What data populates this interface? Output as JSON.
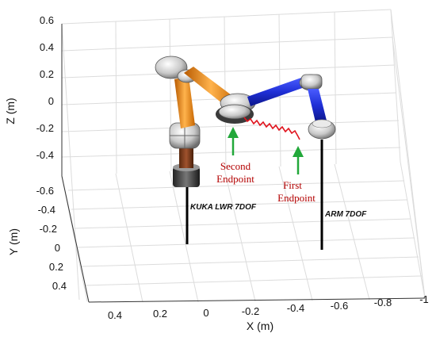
{
  "figure": {
    "z_axis": {
      "label": "Z (m)",
      "ticks": [
        "0.6",
        "0.4",
        "0.2",
        "0",
        "-0.2",
        "-0.4"
      ]
    },
    "y_axis": {
      "label": "Y (m)",
      "ticks": [
        "-0.6",
        "-0.4",
        "-0.2",
        "0",
        "0.2",
        "0.4"
      ]
    },
    "x_axis": {
      "label": "X (m)",
      "ticks": [
        "0.4",
        "0.2",
        "0",
        "-0.2",
        "-0.4",
        "-0.6",
        "-0.8",
        "-1"
      ]
    },
    "robots": [
      {
        "label": "KUKA LWR 7DOF",
        "link_color": "#f08a1c"
      },
      {
        "label": "ARM 7DOF",
        "link_color": "#1f2fd6"
      }
    ],
    "annotations": {
      "second_endpoint": [
        "Second",
        "Endpoint"
      ],
      "first_endpoint": [
        "First",
        "Endpoint"
      ]
    },
    "colors": {
      "arrow": "#22a83a",
      "trajectory": "#e0141e",
      "annotation_text": "#b30000",
      "joint": "#c9c9c9"
    },
    "grid": true
  }
}
